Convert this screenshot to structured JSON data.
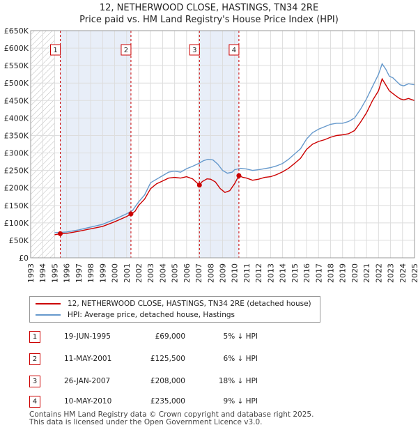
{
  "header": {
    "line1": "12, NETHERWOOD CLOSE, HASTINGS, TN34 2RE",
    "line2": "Price paid vs. HM Land Registry's House Price Index (HPI)"
  },
  "legend": {
    "series1": "12, NETHERWOOD CLOSE, HASTINGS, TN34 2RE (detached house)",
    "series2": "HPI: Average price, detached house, Hastings"
  },
  "transactions": [
    {
      "num": "1",
      "date": "19-JUN-1995",
      "price": "£69,000",
      "hpi": "5% ↓ HPI"
    },
    {
      "num": "2",
      "date": "11-MAY-2001",
      "price": "£125,500",
      "hpi": "6% ↓ HPI"
    },
    {
      "num": "3",
      "date": "26-JAN-2007",
      "price": "£208,000",
      "hpi": "18% ↓ HPI"
    },
    {
      "num": "4",
      "date": "10-MAY-2010",
      "price": "£235,000",
      "hpi": "9% ↓ HPI"
    }
  ],
  "footer": {
    "line1": "Contains HM Land Registry data © Crown copyright and database right 2025.",
    "line2": "This data is licensed under the Open Government Licence v3.0."
  },
  "colors": {
    "price": "#cc0000",
    "hpi": "#6699cc",
    "grid": "#dddddd",
    "hatch": "#bbbbbb",
    "shade": "#e8eef8"
  },
  "chart_data": {
    "type": "line",
    "title": "12, NETHERWOOD CLOSE, HASTINGS, TN34 2RE",
    "subtitle": "Price paid vs. HM Land Registry's House Price Index (HPI)",
    "xlim": [
      1993,
      2025
    ],
    "ylim": [
      0,
      650000
    ],
    "y_ticks": [
      0,
      50000,
      100000,
      150000,
      200000,
      250000,
      300000,
      350000,
      400000,
      450000,
      500000,
      550000,
      600000,
      650000
    ],
    "y_tick_labels": [
      "£0",
      "£50K",
      "£100K",
      "£150K",
      "£200K",
      "£250K",
      "£300K",
      "£350K",
      "£400K",
      "£450K",
      "£500K",
      "£550K",
      "£600K",
      "£650K"
    ],
    "x_ticks": [
      1993,
      1994,
      1995,
      1996,
      1997,
      1998,
      1999,
      2000,
      2001,
      2002,
      2003,
      2004,
      2005,
      2006,
      2007,
      2008,
      2009,
      2010,
      2011,
      2012,
      2013,
      2014,
      2015,
      2016,
      2017,
      2018,
      2019,
      2020,
      2021,
      2022,
      2023,
      2024,
      2025
    ],
    "data_start": 1995.0,
    "series": [
      {
        "name": "HPI: Average price, detached house, Hastings",
        "color": "#6699cc",
        "points": [
          [
            1995.0,
            72000
          ],
          [
            1996.0,
            74000
          ],
          [
            1997.0,
            80000
          ],
          [
            1998.0,
            88000
          ],
          [
            1999.0,
            96000
          ],
          [
            2000.0,
            110000
          ],
          [
            2001.0,
            126000
          ],
          [
            2001.5,
            136000
          ],
          [
            2002.0,
            160000
          ],
          [
            2002.5,
            180000
          ],
          [
            2003.0,
            215000
          ],
          [
            2003.5,
            225000
          ],
          [
            2004.0,
            235000
          ],
          [
            2004.5,
            245000
          ],
          [
            2005.0,
            248000
          ],
          [
            2005.5,
            245000
          ],
          [
            2006.0,
            255000
          ],
          [
            2006.5,
            262000
          ],
          [
            2007.0,
            270000
          ],
          [
            2007.4,
            278000
          ],
          [
            2007.8,
            282000
          ],
          [
            2008.2,
            280000
          ],
          [
            2008.6,
            268000
          ],
          [
            2009.0,
            250000
          ],
          [
            2009.4,
            242000
          ],
          [
            2009.8,
            245000
          ],
          [
            2010.0,
            252000
          ],
          [
            2010.5,
            256000
          ],
          [
            2011.0,
            254000
          ],
          [
            2011.5,
            250000
          ],
          [
            2012.0,
            252000
          ],
          [
            2012.5,
            255000
          ],
          [
            2013.0,
            258000
          ],
          [
            2013.5,
            263000
          ],
          [
            2014.0,
            270000
          ],
          [
            2014.5,
            282000
          ],
          [
            2015.0,
            297000
          ],
          [
            2015.5,
            312000
          ],
          [
            2016.0,
            340000
          ],
          [
            2016.5,
            358000
          ],
          [
            2017.0,
            368000
          ],
          [
            2017.5,
            375000
          ],
          [
            2018.0,
            382000
          ],
          [
            2018.5,
            385000
          ],
          [
            2019.0,
            385000
          ],
          [
            2019.5,
            390000
          ],
          [
            2020.0,
            400000
          ],
          [
            2020.5,
            425000
          ],
          [
            2021.0,
            455000
          ],
          [
            2021.5,
            490000
          ],
          [
            2022.0,
            525000
          ],
          [
            2022.3,
            555000
          ],
          [
            2022.6,
            540000
          ],
          [
            2022.9,
            520000
          ],
          [
            2023.2,
            515000
          ],
          [
            2023.5,
            505000
          ],
          [
            2023.8,
            495000
          ],
          [
            2024.1,
            492000
          ],
          [
            2024.5,
            498000
          ],
          [
            2025.0,
            495000
          ]
        ]
      },
      {
        "name": "12, NETHERWOOD CLOSE, HASTINGS, TN34 2RE (detached house)",
        "color": "#cc0000",
        "points": [
          [
            1995.0,
            66000
          ],
          [
            1995.47,
            69000
          ],
          [
            1996.0,
            70000
          ],
          [
            1997.0,
            76000
          ],
          [
            1998.0,
            83000
          ],
          [
            1999.0,
            90000
          ],
          [
            2000.0,
            103000
          ],
          [
            2001.0,
            118000
          ],
          [
            2001.36,
            125500
          ],
          [
            2001.7,
            133000
          ],
          [
            2002.0,
            150000
          ],
          [
            2002.5,
            168000
          ],
          [
            2003.0,
            198000
          ],
          [
            2003.5,
            212000
          ],
          [
            2004.0,
            220000
          ],
          [
            2004.5,
            228000
          ],
          [
            2005.0,
            230000
          ],
          [
            2005.5,
            228000
          ],
          [
            2006.0,
            232000
          ],
          [
            2006.5,
            226000
          ],
          [
            2007.07,
            208000
          ],
          [
            2007.3,
            218000
          ],
          [
            2007.7,
            226000
          ],
          [
            2008.0,
            225000
          ],
          [
            2008.4,
            217000
          ],
          [
            2008.8,
            198000
          ],
          [
            2009.2,
            187000
          ],
          [
            2009.6,
            192000
          ],
          [
            2010.0,
            212000
          ],
          [
            2010.36,
            235000
          ],
          [
            2010.7,
            230000
          ],
          [
            2011.0,
            228000
          ],
          [
            2011.5,
            222000
          ],
          [
            2012.0,
            225000
          ],
          [
            2012.5,
            230000
          ],
          [
            2013.0,
            232000
          ],
          [
            2013.5,
            238000
          ],
          [
            2014.0,
            246000
          ],
          [
            2014.5,
            256000
          ],
          [
            2015.0,
            270000
          ],
          [
            2015.5,
            285000
          ],
          [
            2016.0,
            310000
          ],
          [
            2016.5,
            325000
          ],
          [
            2017.0,
            333000
          ],
          [
            2017.5,
            338000
          ],
          [
            2018.0,
            345000
          ],
          [
            2018.5,
            350000
          ],
          [
            2019.0,
            352000
          ],
          [
            2019.5,
            355000
          ],
          [
            2020.0,
            364000
          ],
          [
            2020.5,
            388000
          ],
          [
            2021.0,
            415000
          ],
          [
            2021.5,
            450000
          ],
          [
            2022.0,
            478000
          ],
          [
            2022.3,
            512000
          ],
          [
            2022.6,
            495000
          ],
          [
            2022.9,
            478000
          ],
          [
            2023.2,
            470000
          ],
          [
            2023.5,
            462000
          ],
          [
            2023.8,
            455000
          ],
          [
            2024.1,
            452000
          ],
          [
            2024.5,
            456000
          ],
          [
            2025.0,
            450000
          ]
        ]
      }
    ],
    "sales": [
      {
        "label": "1",
        "x": 1995.47,
        "y": 69000
      },
      {
        "label": "2",
        "x": 2001.36,
        "y": 125500
      },
      {
        "label": "3",
        "x": 2007.07,
        "y": 208000
      },
      {
        "label": "4",
        "x": 2010.36,
        "y": 235000
      }
    ],
    "shaded_ranges": [
      [
        1995.47,
        2001.36
      ],
      [
        2007.07,
        2010.36
      ]
    ],
    "grid": true,
    "legend_position": "bottom"
  }
}
